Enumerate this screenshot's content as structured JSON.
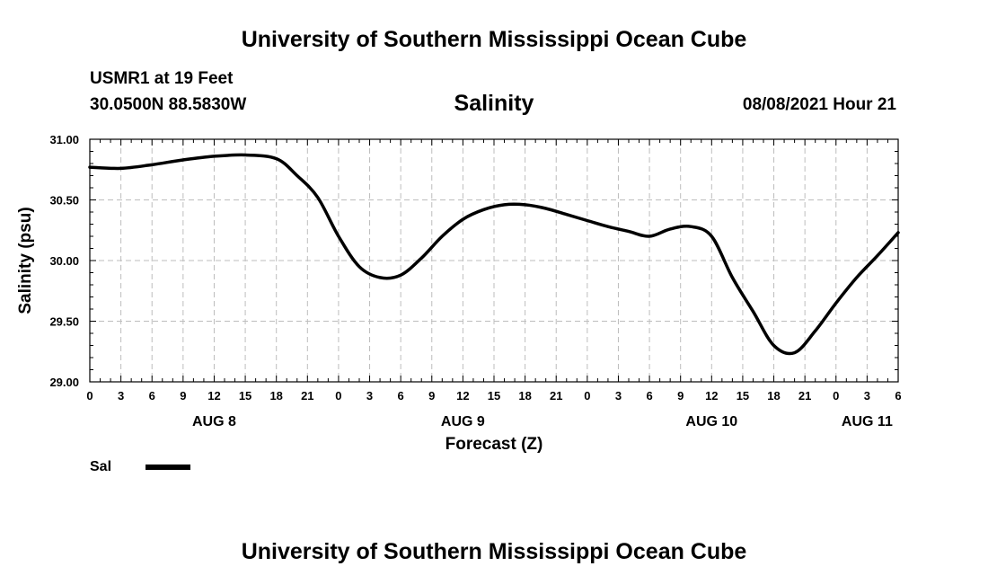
{
  "header_title": "University of Southern Mississippi Ocean Cube",
  "footer_title": "University of Southern Mississippi Ocean Cube",
  "station": "USMR1 at 19 Feet",
  "coordinates": "30.0500N  88.5830W",
  "timestamp": "08/08/2021 Hour 21",
  "chart_data": {
    "type": "line",
    "title": "Salinity",
    "ylabel": "Salinity (psu)",
    "xlabel": "Forecast (Z)",
    "ylim": [
      29.0,
      31.0
    ],
    "y_ticks": [
      "29.00",
      "29.50",
      "30.00",
      "30.50",
      "31.00"
    ],
    "x_range_hours": [
      0,
      78
    ],
    "x_tick_labels": [
      "0",
      "3",
      "6",
      "9",
      "12",
      "15",
      "18",
      "21",
      "0",
      "3",
      "6",
      "9",
      "12",
      "15",
      "18",
      "21",
      "0",
      "3",
      "6",
      "9",
      "12",
      "15",
      "18",
      "21",
      "0",
      "3",
      "6"
    ],
    "day_labels": [
      {
        "label": "AUG 8",
        "hour": 12
      },
      {
        "label": "AUG 9",
        "hour": 36
      },
      {
        "label": "AUG 10",
        "hour": 60
      },
      {
        "label": "AUG 11",
        "hour": 75
      }
    ],
    "grid": true,
    "legend_placement": "bottom-left",
    "series": [
      {
        "name": "Sal",
        "color": "#000000",
        "x": [
          0,
          3,
          6,
          9,
          12,
          15,
          18,
          20,
          22,
          24,
          26,
          28,
          30,
          32,
          34,
          36,
          38,
          40,
          42,
          44,
          46,
          48,
          50,
          52,
          54,
          56,
          58,
          60,
          62,
          64,
          66,
          68,
          70,
          72,
          74,
          76,
          78
        ],
        "values": [
          30.77,
          30.76,
          30.79,
          30.83,
          30.86,
          30.87,
          30.84,
          30.7,
          30.52,
          30.2,
          29.95,
          29.86,
          29.88,
          30.02,
          30.2,
          30.34,
          30.42,
          30.46,
          30.46,
          30.43,
          30.38,
          30.33,
          30.28,
          30.24,
          30.2,
          30.26,
          30.28,
          30.2,
          29.86,
          29.58,
          29.3,
          29.24,
          29.42,
          29.65,
          29.86,
          30.04,
          30.23
        ]
      }
    ]
  }
}
